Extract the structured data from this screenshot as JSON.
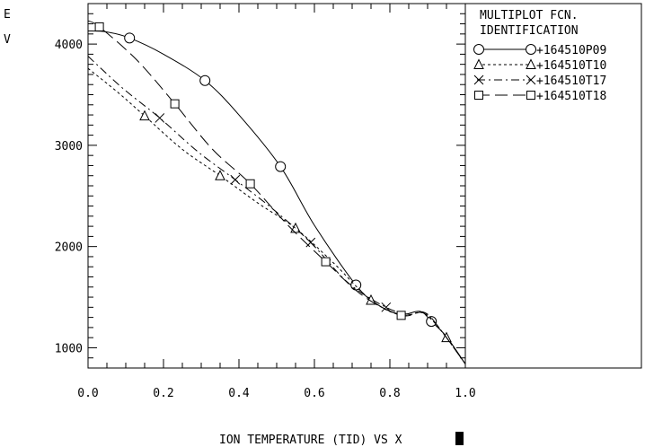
{
  "chart_data": {
    "type": "line",
    "title": "",
    "xlabel": "ION TEMPERATURE (TID) VS X",
    "ylabel_lines": [
      "E",
      "V"
    ],
    "xlim": [
      0.0,
      1.0
    ],
    "ylim": [
      800,
      4400
    ],
    "x_tick_labels": [
      "0.0",
      "0.2",
      "0.4",
      "0.6",
      "0.8",
      "1.0"
    ],
    "y_tick_labels": [
      "1000",
      "2000",
      "3000",
      "4000"
    ],
    "grid": false,
    "legend": {
      "placement": "right",
      "title_lines": [
        "MULTIPLOT FCN.",
        "IDENTIFICATION"
      ]
    },
    "series": [
      {
        "name": "+164510P09",
        "marker": "circle",
        "dash": "solid",
        "x": [
          0.0,
          0.05,
          0.11,
          0.2,
          0.31,
          0.4,
          0.51,
          0.6,
          0.71,
          0.77,
          0.83,
          0.88,
          0.91,
          0.95,
          1.0
        ],
        "y": [
          4130,
          4120,
          4060,
          3900,
          3640,
          3300,
          2790,
          2210,
          1620,
          1420,
          1330,
          1360,
          1260,
          1110,
          840
        ]
      },
      {
        "name": "+164510T10",
        "marker": "triangle",
        "dash": "short",
        "x": [
          0.0,
          0.08,
          0.15,
          0.25,
          0.35,
          0.45,
          0.55,
          0.65,
          0.75,
          0.83,
          0.88,
          0.91,
          0.95,
          1.0
        ],
        "y": [
          3760,
          3520,
          3290,
          2960,
          2700,
          2430,
          2180,
          1840,
          1470,
          1320,
          1350,
          1280,
          1100,
          840
        ]
      },
      {
        "name": "+164510T17",
        "marker": "x",
        "dash": "dashdot",
        "x": [
          0.0,
          0.09,
          0.19,
          0.29,
          0.39,
          0.49,
          0.59,
          0.69,
          0.79,
          0.85,
          0.89,
          0.93,
          1.0
        ],
        "y": [
          3880,
          3570,
          3270,
          2940,
          2660,
          2370,
          2040,
          1640,
          1400,
          1330,
          1350,
          1200,
          840
        ]
      },
      {
        "name": "+164510T18",
        "marker": "square",
        "dash": "long",
        "x": [
          0.0,
          0.03,
          0.13,
          0.23,
          0.33,
          0.43,
          0.53,
          0.63,
          0.73,
          0.83,
          0.89,
          0.93,
          1.0
        ],
        "y": [
          4230,
          4170,
          3840,
          3410,
          2960,
          2620,
          2210,
          1850,
          1510,
          1320,
          1350,
          1200,
          840
        ]
      }
    ]
  }
}
